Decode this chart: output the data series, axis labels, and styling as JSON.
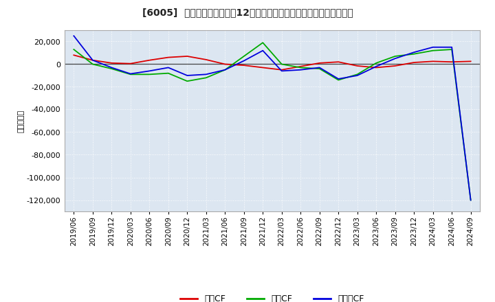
{
  "title": "[6005]  キャッシュフローの12か月移動合計の対前年同期増減額の推移",
  "ylabel": "（百万円）",
  "background_color": "#ffffff",
  "plot_background_color": "#dce6f1",
  "grid_color": "#ffffff",
  "ylim": [
    -130000,
    30000
  ],
  "yticks": [
    -120000,
    -100000,
    -80000,
    -60000,
    -40000,
    -20000,
    0,
    20000
  ],
  "x_labels": [
    "2019/06",
    "2019/09",
    "2019/12",
    "2020/03",
    "2020/06",
    "2020/09",
    "2020/12",
    "2021/03",
    "2021/06",
    "2021/09",
    "2021/12",
    "2022/03",
    "2022/06",
    "2022/09",
    "2022/12",
    "2023/03",
    "2023/06",
    "2023/09",
    "2023/12",
    "2024/03",
    "2024/06",
    "2024/09"
  ],
  "operating_cf": [
    8000,
    3500,
    1000,
    500,
    3500,
    6000,
    7000,
    4000,
    0,
    -1000,
    -3000,
    -5000,
    -2000,
    1000,
    2000,
    -1500,
    -3000,
    -1500,
    1500,
    2500,
    2000,
    2500
  ],
  "investing_cf": [
    13000,
    0,
    -4000,
    -9000,
    -9000,
    -8000,
    -15000,
    -12000,
    -5000,
    7000,
    19000,
    0,
    -3000,
    -4000,
    -14000,
    -9000,
    1000,
    7000,
    9000,
    12000,
    13000,
    -120000
  ],
  "free_cf": [
    25000,
    3500,
    -3000,
    -8500,
    -6000,
    -3000,
    -10000,
    -9000,
    -5000,
    3000,
    12000,
    -6000,
    -5000,
    -3000,
    -13000,
    -10000,
    -2000,
    5000,
    10500,
    15000,
    15000,
    -120000
  ],
  "operating_color": "#dd0000",
  "investing_color": "#00aa00",
  "free_color": "#0000dd",
  "legend_labels": [
    "営業CF",
    "投資CF",
    "フリーCF"
  ]
}
